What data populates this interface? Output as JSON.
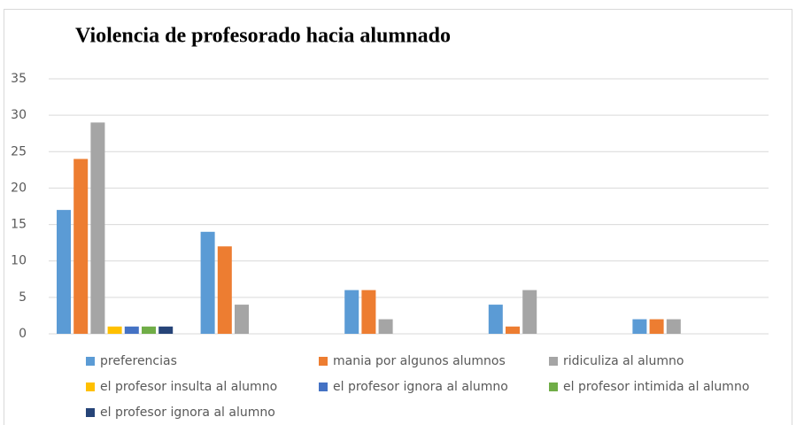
{
  "chart_data": {
    "type": "bar",
    "title": "Violencia de profesorado hacia alumnado",
    "categories": [
      null,
      null,
      null,
      null,
      null
    ],
    "series": [
      {
        "name": "preferencias",
        "color": "#5b9bd5",
        "values": [
          17,
          14,
          6,
          4,
          2
        ]
      },
      {
        "name": "mania por algunos alumnos",
        "color": "#ed7d31",
        "values": [
          24,
          12,
          6,
          1,
          2
        ]
      },
      {
        "name": "ridiculiza al alumno",
        "color": "#a5a5a5",
        "values": [
          29,
          4,
          2,
          6,
          2
        ]
      },
      {
        "name": "el profesor insulta al alumno",
        "color": "#ffc000",
        "values": [
          1,
          0,
          0,
          0,
          0
        ]
      },
      {
        "name": "el profesor ignora al alumno",
        "color": "#4472c4",
        "values": [
          1,
          0,
          0,
          0,
          0
        ]
      },
      {
        "name": "el profesor intimida al alumno",
        "color": "#70ad47",
        "values": [
          1,
          0,
          0,
          0,
          0
        ]
      },
      {
        "name": "el profesor ignora al alumno",
        "color": "#264478",
        "values": [
          1,
          0,
          0,
          0,
          0
        ]
      }
    ],
    "ylim": [
      0,
      35
    ],
    "yticks": [
      0,
      5,
      10,
      15,
      20,
      25,
      30,
      35
    ],
    "grid": true,
    "legend": "bottom"
  }
}
